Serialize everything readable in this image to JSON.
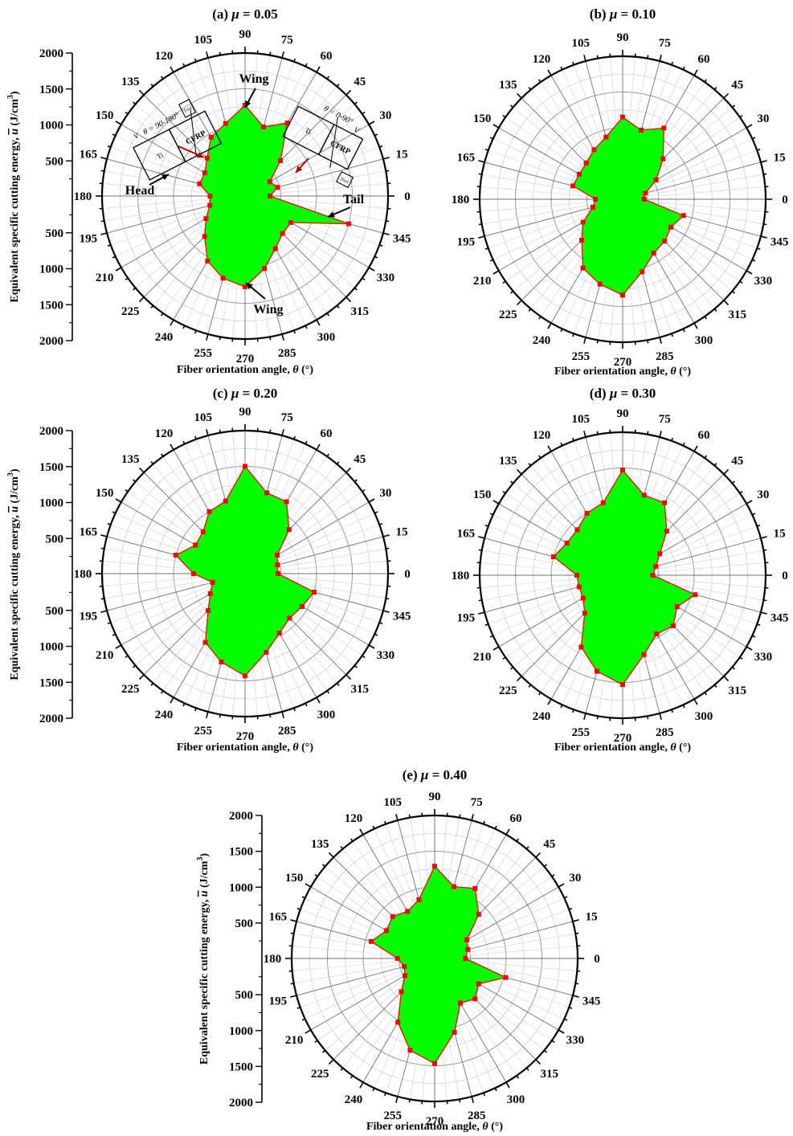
{
  "colors": {
    "fill": "#00ff00",
    "line": "#ff0000",
    "marker": "#ff0000",
    "grid": "#cfcfcf",
    "spoke": "#707070",
    "frame": "#000000",
    "arrow": "#b00000"
  },
  "chart_data": [
    {
      "type": "radar",
      "title_prefix": "(a)",
      "mu_symbol": "μ",
      "mu_value": "= 0.05",
      "xlabel": "Fiber orientation angle,",
      "xlabel_symbol": "θ",
      "xlabel_unit": "(°)",
      "ylabel": "Equivalent specific cutting energy,",
      "ylabel_symbol": "u",
      "ylabel_unit": "(J/cm",
      "ylabel_exp": "3",
      "ylabel_close": ")",
      "r_ticks": [
        "500",
        "1000",
        "1500",
        "2000"
      ],
      "r_range": [
        0,
        2000
      ],
      "angle_ticks": [
        "0",
        "15",
        "30",
        "45",
        "60",
        "75",
        "90",
        "105",
        "120",
        "135",
        "150",
        "165",
        "180",
        "195",
        "210",
        "225",
        "240",
        "255",
        "270",
        "285",
        "300",
        "315",
        "330",
        "345"
      ],
      "theta": [
        0,
        15,
        30,
        45,
        60,
        75,
        90,
        105,
        120,
        135,
        150,
        165,
        180,
        195,
        210,
        225,
        240,
        255,
        270,
        285,
        300,
        315,
        330,
        345
      ],
      "values": [
        350,
        470,
        400,
        700,
        1180,
        1000,
        1270,
        1050,
        950,
        750,
        650,
        660,
        490,
        510,
        630,
        800,
        1050,
        1190,
        1270,
        1050,
        850,
        740,
        740,
        1500
      ],
      "annotations": [
        "Wing",
        "Head",
        "Tail",
        "Wing"
      ],
      "inset": {
        "left_formula": "θ = 90-180°",
        "right_formula": "θ = 0-90°",
        "v": "V",
        "ti": "Ti",
        "cfrp": "CFRP",
        "tool": "Tool"
      }
    },
    {
      "type": "radar",
      "title_prefix": "(b)",
      "mu_symbol": "μ",
      "mu_value": "= 0.10",
      "xlabel": "Fiber orientation angle,",
      "xlabel_symbol": "θ",
      "xlabel_unit": "(°)",
      "angle_ticks": [
        "0",
        "15",
        "30",
        "45",
        "60",
        "75",
        "90",
        "105",
        "120",
        "135",
        "150",
        "165",
        "180",
        "195",
        "210",
        "225",
        "240",
        "255",
        "270",
        "285",
        "300",
        "315",
        "330",
        "345"
      ],
      "theta": [
        0,
        15,
        30,
        45,
        60,
        75,
        90,
        105,
        120,
        135,
        150,
        165,
        180,
        195,
        210,
        225,
        240,
        255,
        270,
        285,
        300,
        315,
        330,
        345
      ],
      "values": [
        300,
        330,
        540,
        800,
        1150,
        1000,
        1150,
        900,
        800,
        720,
        700,
        720,
        380,
        430,
        640,
        810,
        1110,
        1230,
        1340,
        1050,
        870,
        830,
        780,
        880
      ]
    },
    {
      "type": "radar",
      "title_prefix": "(c)",
      "mu_symbol": "μ",
      "mu_value": "= 0.20",
      "xlabel": "Fiber orientation angle,",
      "xlabel_symbol": "θ",
      "xlabel_unit": "(°)",
      "ylabel": "Equivalent specific cutting energy,",
      "ylabel_symbol": "u",
      "ylabel_unit": "(J/cm",
      "ylabel_exp": "3",
      "ylabel_close": ")",
      "r_ticks": [
        "500",
        "1000",
        "1500",
        "2000"
      ],
      "r_range": [
        0,
        2000
      ],
      "angle_ticks": [
        "0",
        "15",
        "30",
        "45",
        "60",
        "75",
        "90",
        "105",
        "120",
        "135",
        "150",
        "165",
        "180",
        "195",
        "210",
        "225",
        "240",
        "255",
        "270",
        "285",
        "300",
        "315",
        "330",
        "345"
      ],
      "theta": [
        0,
        15,
        30,
        45,
        60,
        75,
        90,
        105,
        120,
        135,
        150,
        165,
        180,
        195,
        210,
        225,
        240,
        255,
        270,
        285,
        300,
        315,
        330,
        345
      ],
      "values": [
        460,
        470,
        520,
        870,
        1160,
        1170,
        1500,
        1050,
        1000,
        830,
        800,
        1000,
        720,
        470,
        560,
        730,
        1110,
        1280,
        1430,
        1140,
        960,
        880,
        920,
        1000
      ]
    },
    {
      "type": "radar",
      "title_prefix": "(d)",
      "mu_symbol": "μ",
      "mu_value": "= 0.30",
      "xlabel": "Fiber orientation angle,",
      "xlabel_symbol": "θ",
      "xlabel_unit": "(°)",
      "angle_ticks": [
        "0",
        "15",
        "30",
        "45",
        "60",
        "75",
        "90",
        "105",
        "120",
        "135",
        "150",
        "165",
        "180",
        "195",
        "210",
        "225",
        "240",
        "255",
        "270",
        "285",
        "300",
        "315",
        "330",
        "345"
      ],
      "theta": [
        0,
        15,
        30,
        45,
        60,
        75,
        90,
        105,
        120,
        135,
        150,
        165,
        180,
        195,
        210,
        225,
        240,
        255,
        270,
        285,
        300,
        315,
        330,
        345
      ],
      "values": [
        420,
        480,
        600,
        870,
        1170,
        1160,
        1470,
        1050,
        1000,
        900,
        900,
        1000,
        640,
        630,
        640,
        750,
        1160,
        1390,
        1530,
        1150,
        950,
        1000,
        880,
        1050
      ]
    },
    {
      "type": "radar",
      "title_prefix": "(e)",
      "mu_symbol": "μ",
      "mu_value": "= 0.40",
      "xlabel": "Fiber orientation angle,",
      "xlabel_symbol": "θ",
      "xlabel_unit": "(°)",
      "ylabel": "Equivalent specific cutting energy,",
      "ylabel_symbol": "u",
      "ylabel_unit": "(J/cm",
      "ylabel_exp": "3",
      "ylabel_close": ")",
      "r_ticks": [
        "500",
        "1000",
        "1500",
        "2000"
      ],
      "r_range": [
        0,
        2000
      ],
      "angle_ticks": [
        "0",
        "15",
        "30",
        "45",
        "60",
        "75",
        "90",
        "105",
        "120",
        "135",
        "150",
        "165",
        "180",
        "195",
        "210",
        "225",
        "240",
        "255",
        "270",
        "285",
        "300",
        "315",
        "330",
        "345"
      ],
      "theta": [
        0,
        15,
        30,
        45,
        60,
        75,
        90,
        105,
        120,
        135,
        150,
        165,
        180,
        195,
        210,
        225,
        240,
        255,
        270,
        285,
        300,
        315,
        330,
        345
      ],
      "values": [
        430,
        480,
        520,
        870,
        1130,
        1040,
        1290,
        850,
        760,
        830,
        780,
        920,
        520,
        440,
        480,
        660,
        1030,
        1330,
        1470,
        1070,
        720,
        800,
        710,
        1030
      ]
    }
  ]
}
